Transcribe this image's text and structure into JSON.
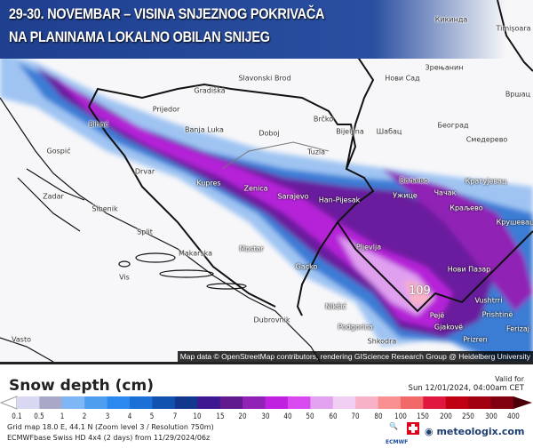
{
  "banner": {
    "line1": "29-30. NOVEMBAR – VISINA SNJEZNOG POKRIVAČA",
    "line2": "NA PLANINAMA LOKALNO OBILAN SNIJEG"
  },
  "map": {
    "cities": [
      "Кикинда",
      "Timișoara",
      "Зрењанин",
      "Нови Сад",
      "Вршац",
      "Gradiška",
      "Slavonski Brod",
      "Prijedor",
      "Bihać",
      "Banja Luka",
      "Doboj",
      "Brčko",
      "Bijeljina",
      "Шабац",
      "Београд",
      "Смедерево",
      "Gospić",
      "Tuzla",
      "Ваљево",
      "Drvar",
      "Zadar",
      "Zenica",
      "Han-Pijesak",
      "Kupres",
      "Крагујевац",
      "Sarajevo",
      "Ужице",
      "Чачак",
      "Šibenik",
      "Краљево",
      "Крушевац",
      "Split",
      "Mostar",
      "Makarska",
      "Pljevlja",
      "Нови Пазар",
      "Gacko",
      "Vis",
      "Nikšić",
      "Vushtrri",
      "Pejë",
      "Prishtinë",
      "Dubrovnik",
      "Podgorica",
      "Gjakovë",
      "Ferizaj",
      "Prizren",
      "Vasto",
      "Shkodra"
    ],
    "max_label": "109",
    "attribution": "Map data © OpenStreetMap contributors, rendering GIScience Research Group @ Heidelberg University"
  },
  "legend": {
    "title": "Snow depth (cm)",
    "valid_label": "Valid for",
    "valid_time": "Sun 12/01/2024, 04:00am CET",
    "ticks": [
      "0.1",
      "0.5",
      "1",
      "2",
      "3",
      "4",
      "5",
      "7",
      "10",
      "15",
      "20",
      "30",
      "40",
      "50",
      "60",
      "70",
      "80",
      "100",
      "150",
      "200",
      "250",
      "300",
      "400"
    ],
    "colors": [
      "#d8d8f2",
      "#a8a8c8",
      "#7eb6f6",
      "#4e9ef0",
      "#2a88ee",
      "#1a70d6",
      "#1052ae",
      "#12388e",
      "#3e1890",
      "#601a8e",
      "#9022b6",
      "#c020e0",
      "#d84af0",
      "#e2a2f0",
      "#f0cef2",
      "#f8b2c8",
      "#f89090",
      "#f06868",
      "#e01840",
      "#c00012",
      "#a00010",
      "#800010"
    ],
    "over_color": "#4a0008",
    "under_color": "#ffffff"
  },
  "footer": {
    "grid": "Grid map 18.0 E, 44.1 N (Zoom level 3 / Resolution 750m)",
    "model": "ECMWFbase Swiss HD 4x4 (2 days) from  11/29/2024/06z",
    "brand": "meteologix.com",
    "hd_logo": "SWISS HD",
    "ecmwf_logo": "ECMWFbase"
  }
}
